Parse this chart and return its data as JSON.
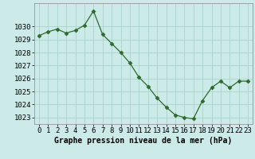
{
  "x": [
    0,
    1,
    2,
    3,
    4,
    5,
    6,
    7,
    8,
    9,
    10,
    11,
    12,
    13,
    14,
    15,
    16,
    17,
    18,
    19,
    20,
    21,
    22,
    23
  ],
  "y": [
    1029.3,
    1029.6,
    1029.8,
    1029.5,
    1029.7,
    1030.1,
    1031.2,
    1029.4,
    1028.7,
    1028.0,
    1027.2,
    1026.1,
    1025.4,
    1024.5,
    1023.8,
    1023.2,
    1023.0,
    1022.9,
    1024.3,
    1025.3,
    1025.8,
    1025.3,
    1025.8,
    1025.8
  ],
  "line_color": "#2d6a2d",
  "marker": "D",
  "marker_size": 2.5,
  "bg_color": "#cceae7",
  "grid_color": "#aad4cc",
  "xlabel": "Graphe pression niveau de la mer (hPa)",
  "xlabel_fontsize": 7.0,
  "tick_fontsize": 6.5,
  "ylim": [
    1022.5,
    1031.8
  ],
  "yticks": [
    1023,
    1024,
    1025,
    1026,
    1027,
    1028,
    1029,
    1030
  ],
  "xlim": [
    -0.5,
    23.5
  ],
  "xticks": [
    0,
    1,
    2,
    3,
    4,
    5,
    6,
    7,
    8,
    9,
    10,
    11,
    12,
    13,
    14,
    15,
    16,
    17,
    18,
    19,
    20,
    21,
    22,
    23
  ]
}
